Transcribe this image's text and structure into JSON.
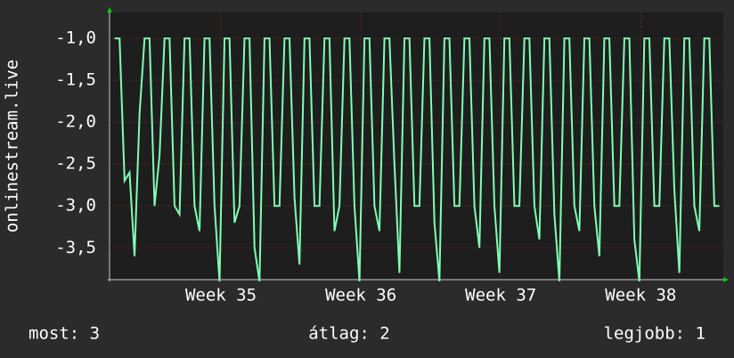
{
  "chart_data": {
    "type": "line",
    "ylabel": "onlinestream.live",
    "color": "#80ffb4",
    "grid": true,
    "xlim": [
      0,
      30.7
    ],
    "xticks": [
      {
        "value": 5.57,
        "label": "Week 35"
      },
      {
        "value": 12.57,
        "label": "Week 36"
      },
      {
        "value": 19.57,
        "label": "Week 37"
      },
      {
        "value": 26.57,
        "label": "Week 38"
      }
    ],
    "ylim": [
      -3.88,
      -0.69
    ],
    "yticks": [
      {
        "value": -1,
        "label": "-1,0"
      },
      {
        "value": -1.5,
        "label": "-1,5"
      },
      {
        "value": -2,
        "label": "-2,0"
      },
      {
        "value": -2.5,
        "label": "-2,5"
      },
      {
        "value": -3,
        "label": "-3,0"
      },
      {
        "value": -3.5,
        "label": "-3,5"
      }
    ],
    "x": [
      0.25,
      0.5,
      0.75,
      1,
      1.25,
      1.5,
      1.75,
      2,
      2.25,
      2.5,
      2.75,
      3,
      3.25,
      3.5,
      3.75,
      4,
      4.25,
      4.5,
      4.75,
      5,
      5.25,
      5.5,
      5.75,
      6,
      6.25,
      6.5,
      6.75,
      7,
      7.25,
      7.5,
      7.75,
      8,
      8.25,
      8.5,
      8.75,
      9,
      9.25,
      9.5,
      9.75,
      10,
      10.25,
      10.5,
      10.75,
      11,
      11.25,
      11.5,
      11.75,
      12,
      12.25,
      12.5,
      12.75,
      13,
      13.25,
      13.5,
      13.75,
      14,
      14.25,
      14.5,
      14.75,
      15,
      15.25,
      15.5,
      15.75,
      16,
      16.25,
      16.5,
      16.75,
      17,
      17.25,
      17.5,
      17.75,
      18,
      18.25,
      18.5,
      18.75,
      19,
      19.25,
      19.5,
      19.75,
      20,
      20.25,
      20.5,
      20.75,
      21,
      21.25,
      21.5,
      21.75,
      22,
      22.25,
      22.5,
      22.75,
      23,
      23.25,
      23.5,
      23.75,
      24,
      24.25,
      24.5,
      24.75,
      25,
      25.25,
      25.5,
      25.75,
      26,
      26.25,
      26.5,
      26.75,
      27,
      27.25,
      27.5,
      27.75,
      28,
      28.25,
      28.5,
      28.75,
      29,
      29.25,
      29.5,
      29.75,
      30,
      30.25,
      30.5
    ],
    "values": [
      -1,
      -1,
      -2.7,
      -2.6,
      -3.6,
      -1.9,
      -1,
      -1,
      -3,
      -2.4,
      -1,
      -1,
      -3,
      -3.1,
      -1,
      -1,
      -3,
      -3.3,
      -1,
      -1,
      -3,
      -3.9,
      -1,
      -1,
      -3.2,
      -3,
      -1,
      -1,
      -3.5,
      -3.9,
      -1,
      -1,
      -3,
      -3,
      -1,
      -1,
      -2.9,
      -3.7,
      -1,
      -1,
      -3,
      -3,
      -1,
      -1,
      -3.3,
      -3,
      -1,
      -1,
      -3,
      -3.9,
      -1,
      -1,
      -3,
      -3.3,
      -1,
      -1,
      -2.5,
      -3.8,
      -1,
      -1,
      -3,
      -3,
      -1,
      -1,
      -3.2,
      -3.9,
      -1,
      -1,
      -3,
      -3,
      -1,
      -1,
      -3,
      -3.5,
      -1,
      -1,
      -3,
      -3.8,
      -1,
      -1,
      -3,
      -3,
      -1,
      -1,
      -3,
      -3.4,
      -1,
      -1,
      -3.1,
      -3.9,
      -1,
      -1,
      -3,
      -3.3,
      -1,
      -1,
      -3,
      -3.6,
      -1,
      -1,
      -3,
      -3,
      -1,
      -1,
      -3.4,
      -3.9,
      -1,
      -1,
      -3,
      -3,
      -1,
      -1,
      -2.8,
      -3.8,
      -1,
      -1,
      -3,
      -3.3,
      -1,
      -1,
      -3,
      -3
    ],
    "annotations": [
      "most: 3",
      "átlag: 2",
      "legjobb: 1"
    ]
  }
}
